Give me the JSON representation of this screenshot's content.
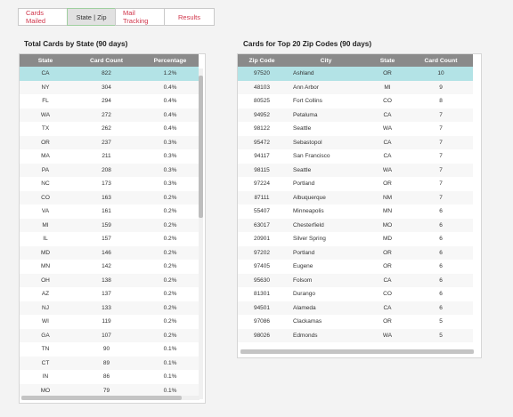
{
  "tabs": [
    {
      "label": "Cards Mailed"
    },
    {
      "label": "State | Zip"
    },
    {
      "label": "Mail Tracking"
    },
    {
      "label": "Results"
    }
  ],
  "state_table": {
    "title": "Total Cards by State (90 days)",
    "headers": [
      "State",
      "Card Count",
      "Percentage"
    ],
    "rows": [
      [
        "CA",
        "822",
        "1.2%"
      ],
      [
        "NY",
        "304",
        "0.4%"
      ],
      [
        "FL",
        "294",
        "0.4%"
      ],
      [
        "WA",
        "272",
        "0.4%"
      ],
      [
        "TX",
        "262",
        "0.4%"
      ],
      [
        "OR",
        "237",
        "0.3%"
      ],
      [
        "MA",
        "211",
        "0.3%"
      ],
      [
        "PA",
        "208",
        "0.3%"
      ],
      [
        "NC",
        "173",
        "0.3%"
      ],
      [
        "CO",
        "163",
        "0.2%"
      ],
      [
        "VA",
        "161",
        "0.2%"
      ],
      [
        "MI",
        "159",
        "0.2%"
      ],
      [
        "IL",
        "157",
        "0.2%"
      ],
      [
        "MD",
        "146",
        "0.2%"
      ],
      [
        "MN",
        "142",
        "0.2%"
      ],
      [
        "OH",
        "138",
        "0.2%"
      ],
      [
        "AZ",
        "137",
        "0.2%"
      ],
      [
        "NJ",
        "133",
        "0.2%"
      ],
      [
        "WI",
        "119",
        "0.2%"
      ],
      [
        "GA",
        "107",
        "0.2%"
      ],
      [
        "TN",
        "90",
        "0.1%"
      ],
      [
        "CT",
        "89",
        "0.1%"
      ],
      [
        "IN",
        "86",
        "0.1%"
      ],
      [
        "MO",
        "79",
        "0.1%"
      ]
    ]
  },
  "zip_table": {
    "title": "Cards for Top 20 Zip Codes (90 days)",
    "headers": [
      "Zip Code",
      "City",
      "State",
      "Card Count"
    ],
    "rows": [
      [
        "97520",
        "Ashland",
        "OR",
        "10"
      ],
      [
        "48103",
        "Ann Arbor",
        "MI",
        "9"
      ],
      [
        "80525",
        "Fort Collins",
        "CO",
        "8"
      ],
      [
        "94952",
        "Petaluma",
        "CA",
        "7"
      ],
      [
        "98122",
        "Seattle",
        "WA",
        "7"
      ],
      [
        "95472",
        "Sebastopol",
        "CA",
        "7"
      ],
      [
        "94117",
        "San Francisco",
        "CA",
        "7"
      ],
      [
        "98115",
        "Seattle",
        "WA",
        "7"
      ],
      [
        "97224",
        "Portland",
        "OR",
        "7"
      ],
      [
        "87111",
        "Albuquerque",
        "NM",
        "7"
      ],
      [
        "55407",
        "Minneapolis",
        "MN",
        "6"
      ],
      [
        "63017",
        "Chesterfield",
        "MO",
        "6"
      ],
      [
        "20901",
        "Silver Spring",
        "MD",
        "6"
      ],
      [
        "97202",
        "Portland",
        "OR",
        "6"
      ],
      [
        "97405",
        "Eugene",
        "OR",
        "6"
      ],
      [
        "95630",
        "Folsom",
        "CA",
        "6"
      ],
      [
        "81301",
        "Durango",
        "CO",
        "6"
      ],
      [
        "94501",
        "Alameda",
        "CA",
        "6"
      ],
      [
        "97086",
        "Clackamas",
        "OR",
        "5"
      ],
      [
        "98026",
        "Edmonds",
        "WA",
        "5"
      ]
    ]
  }
}
